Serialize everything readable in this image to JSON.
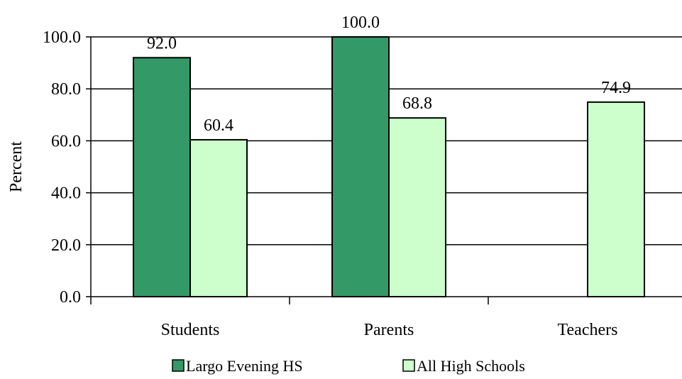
{
  "chart_data": {
    "type": "bar",
    "title": "",
    "xlabel": "",
    "ylabel": "Percent",
    "categories": [
      "Students",
      "Parents",
      "Teachers"
    ],
    "ylim": [
      0,
      100
    ],
    "yticks": [
      0,
      20,
      40,
      60,
      80,
      100
    ],
    "ytick_labels": [
      "0.0",
      "20.0",
      "40.0",
      "60.0",
      "80.0",
      "100.0"
    ],
    "grid": true,
    "legend_position": "bottom",
    "series": [
      {
        "name": "Largo Evening HS",
        "color": "#339966",
        "values": [
          92.0,
          100.0,
          null
        ],
        "labels": [
          "92.0",
          "100.0",
          ""
        ]
      },
      {
        "name": "All High Schools",
        "color": "#CCFFCC",
        "values": [
          60.4,
          68.8,
          74.9
        ],
        "labels": [
          "60.4",
          "68.8",
          "74.9"
        ]
      }
    ]
  }
}
